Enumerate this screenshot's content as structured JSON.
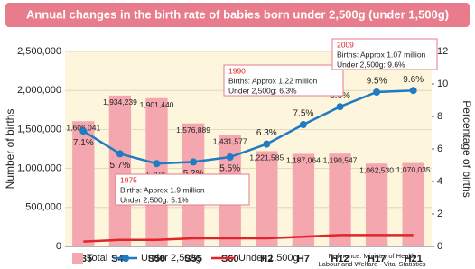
{
  "chart_data": {
    "type": "bar",
    "title": "Annual changes in the birth rate of babies born under 2,500g (under 1,500g)",
    "ylabel": "Number of births",
    "y2label": "Percentage of births",
    "categories": [
      "S35",
      "S45",
      "S50",
      "S55",
      "S60",
      "H2",
      "H7",
      "H12",
      "H17",
      "H21"
    ],
    "series": [
      {
        "name": "Total",
        "type": "bar",
        "color": "#f4a7ae",
        "values": [
          1606041,
          1934239,
          1901440,
          1576889,
          1431577,
          1221585,
          1187064,
          1190547,
          1062530,
          1070035
        ],
        "value_labels": [
          "1,606,041",
          "1,934,239",
          "1,901,440",
          "1,576,889",
          "1,431,577",
          "1,221,585",
          "1,187,064",
          "1,190,547",
          "1,062,530",
          "1,070,035"
        ]
      },
      {
        "name": "Under 2,500g",
        "type": "line",
        "axis": "y2",
        "color": "#1f7cc4",
        "markers": true,
        "values": [
          7.1,
          5.7,
          5.1,
          5.2,
          5.5,
          6.3,
          7.5,
          8.6,
          9.5,
          9.6
        ],
        "value_labels": [
          "7.1%",
          "5.7%",
          "5.1%",
          "5.2%",
          "5.5%",
          "6.3%",
          "7.5%",
          "8.6%",
          "9.5%",
          "9.6%"
        ]
      },
      {
        "name": "Under 1,500g",
        "type": "line",
        "axis": "y2",
        "color": "#e0262b",
        "markers": false,
        "values": [
          0.3,
          0.4,
          0.4,
          0.5,
          0.5,
          0.5,
          0.6,
          0.7,
          0.7,
          0.7
        ]
      }
    ],
    "ylim": [
      0,
      2500000
    ],
    "yticks": [
      {
        "value": 0,
        "label": "0"
      },
      {
        "value": 500000,
        "label": "500,000"
      },
      {
        "value": 1000000,
        "label": "1,000,000"
      },
      {
        "value": 1500000,
        "label": "1,500,000"
      },
      {
        "value": 2000000,
        "label": "2,000,000"
      },
      {
        "value": 2500000,
        "label": "2,500,000"
      }
    ],
    "y2lim": [
      0,
      12
    ],
    "y2ticks": [
      0,
      2,
      4,
      6,
      8,
      10,
      12
    ],
    "grid": true,
    "annotations": [
      {
        "year": "1975",
        "lines": [
          "Births: Approx 1.9 million",
          "Under 2,500g: 5.1%"
        ]
      },
      {
        "year": "1990",
        "lines": [
          "Births: Approx 1.22 million",
          "Under 2,500g: 6.3%"
        ]
      },
      {
        "year": "2009",
        "lines": [
          "Births: Approx 1.07 million",
          "Under 2,500g: 9.6%"
        ]
      }
    ],
    "source": [
      "Reference: Ministry of Health",
      "Labour and Welfare - Vital Statistics"
    ]
  }
}
